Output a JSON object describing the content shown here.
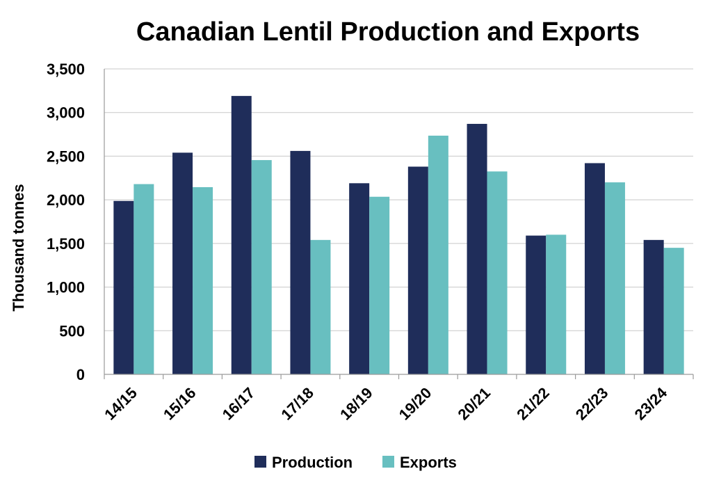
{
  "chart_data": {
    "type": "bar",
    "title": "Canadian Lentil Production and Exports",
    "xlabel": "",
    "ylabel": "Thousand tonnes",
    "categories": [
      "14/15",
      "15/16",
      "16/17",
      "17/18",
      "18/19",
      "19/20",
      "20/21",
      "21/22",
      "22/23",
      "23/24"
    ],
    "series": [
      {
        "name": "Production",
        "color": "#1f2d5a",
        "values": [
          1987,
          2540,
          3190,
          2560,
          2190,
          2380,
          2870,
          1590,
          2420,
          1540
        ]
      },
      {
        "name": "Exports",
        "color": "#68bfc0",
        "values": [
          2180,
          2145,
          2455,
          1540,
          2035,
          2735,
          2325,
          1600,
          2200,
          1450
        ]
      }
    ],
    "ylim": [
      0,
      3500
    ],
    "yticks": [
      "0",
      "500",
      "1,000",
      "1,500",
      "2,000",
      "2,500",
      "3,000",
      "3,500"
    ],
    "grid": true,
    "legend_position": "bottom"
  }
}
